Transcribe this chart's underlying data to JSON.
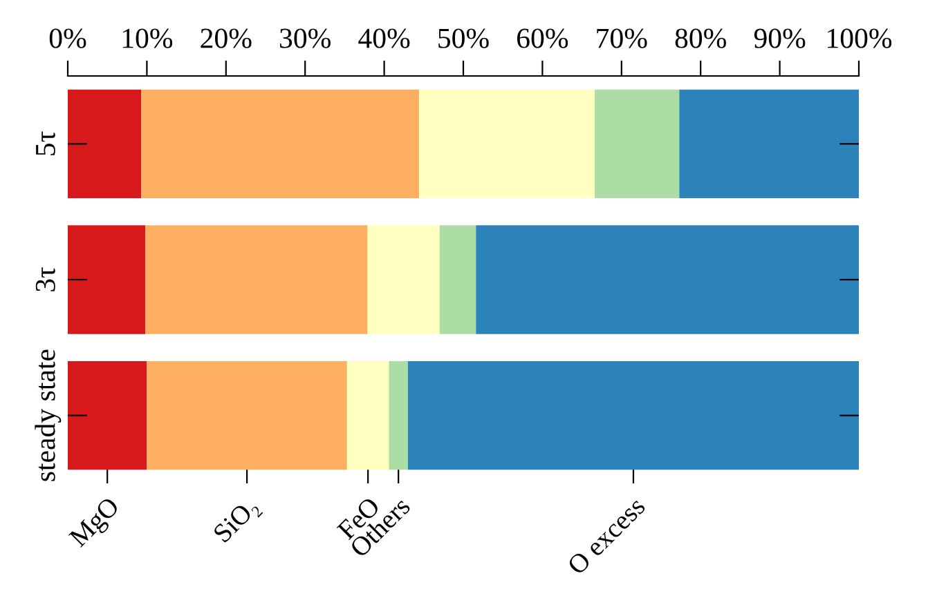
{
  "chart_data": {
    "type": "bar",
    "orientation": "horizontal",
    "stacked": true,
    "categories": [
      "5τ",
      "3τ",
      "steady state"
    ],
    "series": [
      {
        "name": "MgO",
        "color": "#d7191c",
        "values": [
          9.3,
          9.8,
          10.0
        ]
      },
      {
        "name": "SiO₂",
        "color": "#fdae61",
        "values": [
          35.1,
          28.1,
          25.3
        ]
      },
      {
        "name": "FeO",
        "color": "#ffffbf",
        "values": [
          22.2,
          9.1,
          5.3
        ]
      },
      {
        "name": "Others",
        "color": "#abdda4",
        "values": [
          10.7,
          4.6,
          2.4
        ]
      },
      {
        "name": "O excess",
        "color": "#2b83ba",
        "values": [
          22.7,
          48.4,
          57.0
        ]
      }
    ],
    "xlim": [
      0,
      100
    ],
    "xticks": [
      {
        "value": 0,
        "label": "0%"
      },
      {
        "value": 10,
        "label": "10%"
      },
      {
        "value": 20,
        "label": "20%"
      },
      {
        "value": 30,
        "label": "30%"
      },
      {
        "value": 40,
        "label": "40%"
      },
      {
        "value": 50,
        "label": "50%"
      },
      {
        "value": 60,
        "label": "60%"
      },
      {
        "value": 70,
        "label": "70%"
      },
      {
        "value": 80,
        "label": "80%"
      },
      {
        "value": 90,
        "label": "90%"
      },
      {
        "value": 100,
        "label": "100%"
      }
    ],
    "grid": false
  }
}
